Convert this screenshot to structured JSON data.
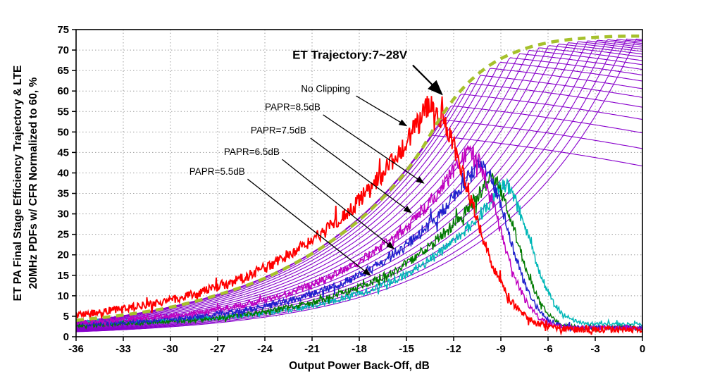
{
  "chart_data": {
    "type": "line",
    "title": "",
    "xlabel": "Output Power Back-Off, dB",
    "ylabel_line1": "ET PA Final Stage Efficiency Trajectory & LTE",
    "ylabel_line2": "20MHz PDFs w/ CFR Normalized to 60, %",
    "xlim": [
      -36,
      0
    ],
    "ylim": [
      0,
      75
    ],
    "x_ticks": [
      -36,
      -33,
      -30,
      -27,
      -24,
      -21,
      -18,
      -15,
      -12,
      -9,
      -6,
      -3,
      0
    ],
    "y_ticks": [
      0,
      5,
      10,
      15,
      20,
      25,
      30,
      35,
      40,
      45,
      50,
      55,
      60,
      65,
      70,
      75
    ],
    "grid_style": "dotted",
    "grid_color": "#9E9E9E",
    "axis_color": "#000000",
    "et_trajectory": {
      "label": "ET Trajectory:7~28V",
      "color": "#A6C12C",
      "line_style": "dashed",
      "points": [
        [
          -36,
          4
        ],
        [
          -33,
          5.3
        ],
        [
          -30,
          7.2
        ],
        [
          -27,
          10.2
        ],
        [
          -24,
          14.3
        ],
        [
          -21,
          20.3
        ],
        [
          -19,
          25.5
        ],
        [
          -18,
          28.5
        ],
        [
          -17,
          32
        ],
        [
          -16,
          36
        ],
        [
          -15,
          40.5
        ],
        [
          -14,
          46
        ],
        [
          -13,
          52.5
        ],
        [
          -12,
          58
        ],
        [
          -11,
          62.3
        ],
        [
          -10,
          65.5
        ],
        [
          -9,
          67.9
        ],
        [
          -8,
          69.6
        ],
        [
          -7,
          70.9
        ],
        [
          -6,
          71.8
        ],
        [
          -5,
          72.4
        ],
        [
          -4,
          72.8
        ],
        [
          -3,
          73.1
        ],
        [
          -2,
          73.3
        ],
        [
          -1,
          73.4
        ],
        [
          0,
          73.4
        ]
      ]
    },
    "efficiency_family": {
      "description": "Fixed-supply PA efficiency curves, 7V to 28V",
      "color": "#8800CC",
      "count": 22,
      "peak_x_first": -13.4,
      "peak_x_last": -0.4,
      "rise_db_per_decade": 20,
      "fall_slope": 0.4,
      "fall_quad": 0.012
    },
    "pdf_series": [
      {
        "name": "No Clipping",
        "color": "#FF0000",
        "peak_x": -13.6,
        "peak_y": 56.5,
        "left_k": 0.055,
        "right_sigma": 2.6,
        "floor": 2.2,
        "noise": 3.0
      },
      {
        "name": "PAPR=8.5dB",
        "color": "#C000C0",
        "peak_x": -11.1,
        "peak_y": 45.5,
        "left_k": 0.062,
        "right_sigma": 1.9,
        "floor": 2.2,
        "noise": 2.2
      },
      {
        "name": "PAPR=7.5dB",
        "color": "#2020CC",
        "peak_x": -10.4,
        "peak_y": 42.5,
        "left_k": 0.065,
        "right_sigma": 1.8,
        "floor": 2.2,
        "noise": 2.2
      },
      {
        "name": "PAPR=6.5dB",
        "color": "#007A00",
        "peak_x": -9.7,
        "peak_y": 38.5,
        "left_k": 0.068,
        "right_sigma": 1.7,
        "floor": 2.2,
        "noise": 2.0
      },
      {
        "name": "PAPR=5.5dB",
        "color": "#00B7B7",
        "peak_x": -8.9,
        "peak_y": 37.0,
        "left_k": 0.072,
        "right_sigma": 1.7,
        "floor": 3.0,
        "noise": 2.0
      }
    ],
    "annotations": [
      {
        "id": "et-trajectory-label",
        "text": "ET Trajectory:7~28V",
        "x": -18.6,
        "y": 67.9,
        "anchor": "middle",
        "bold": true,
        "size": 17,
        "arrow": [
          -14.6,
          66.3,
          -12.75,
          59.2
        ]
      },
      {
        "id": "no-clipping-label",
        "text": "No Clipping",
        "x": -21.7,
        "y": 59.8,
        "anchor": "start",
        "bold": false,
        "size": 13.5,
        "arrow": [
          -18.2,
          58.8,
          -15.0,
          51.5
        ]
      },
      {
        "id": "papr-8-5-label",
        "text": "PAPR=8.5dB",
        "x": -24.0,
        "y": 55.3,
        "anchor": "start",
        "bold": false,
        "size": 13.5,
        "arrow": [
          -20.3,
          54.2,
          -13.9,
          37.5
        ]
      },
      {
        "id": "papr-7-5-label",
        "text": "PAPR=7.5dB",
        "x": -24.9,
        "y": 49.6,
        "anchor": "start",
        "bold": false,
        "size": 13.5,
        "arrow": [
          -21.1,
          48.5,
          -14.7,
          30.3
        ]
      },
      {
        "id": "papr-6-5-label",
        "text": "PAPR=6.5dB",
        "x": -26.6,
        "y": 44.4,
        "anchor": "start",
        "bold": false,
        "size": 13.5,
        "arrow": [
          -22.9,
          43.3,
          -15.8,
          21.5
        ]
      },
      {
        "id": "papr-5-5-label",
        "text": "PAPR=5.5dB",
        "x": -28.8,
        "y": 39.6,
        "anchor": "start",
        "bold": false,
        "size": 13.5,
        "arrow": [
          -25.1,
          38.5,
          -17.3,
          15.0
        ]
      }
    ]
  }
}
